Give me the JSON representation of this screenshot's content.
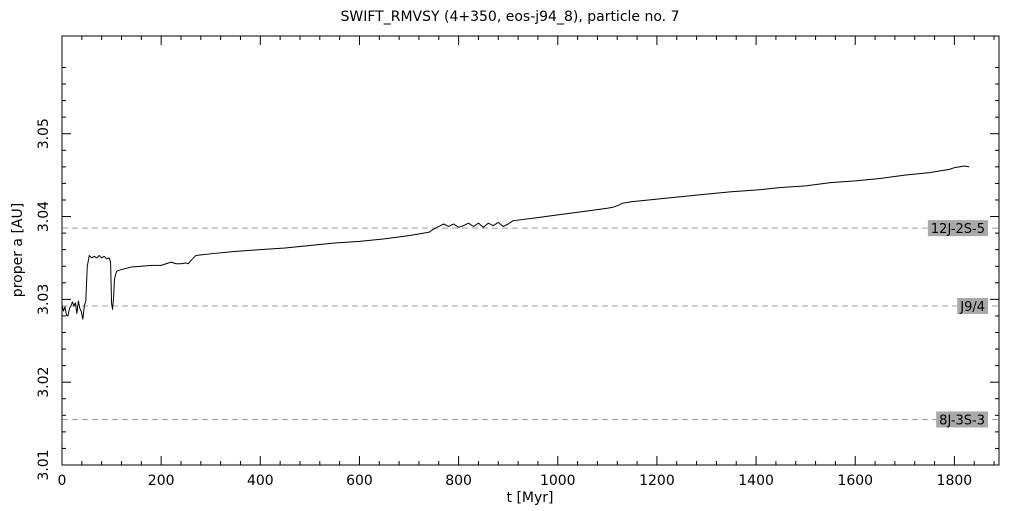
{
  "chart_data": {
    "type": "line",
    "title": "SWIFT_RMVSY (4+350, eos-j94_8), particle no. 7",
    "xlabel": "t [Myr]",
    "ylabel": "proper a [AU]",
    "xlim": [
      0,
      1890
    ],
    "ylim": [
      3.01,
      3.0618
    ],
    "x_ticks": [
      0,
      200,
      400,
      600,
      800,
      1000,
      1200,
      1400,
      1600,
      1800
    ],
    "x_tick_labels": [
      "0",
      "200",
      "400",
      "600",
      "800",
      "1000",
      "1200",
      "1400",
      "1600",
      "1800"
    ],
    "y_ticks": [
      3.01,
      3.02,
      3.03,
      3.04,
      3.05
    ],
    "y_tick_labels": [
      "3.01",
      "3.02",
      "3.03",
      "3.04",
      "3.05"
    ],
    "grid": false,
    "resonances": [
      {
        "label": "12J-2S-5",
        "a": 3.0386
      },
      {
        "label": "J9/4",
        "a": 3.0292
      },
      {
        "label": "8J-3S-3",
        "a": 3.0155
      }
    ],
    "series": [
      {
        "x": [
          0,
          3,
          6,
          9,
          12,
          15,
          18,
          21,
          24,
          27,
          30,
          33,
          36,
          39,
          42,
          45,
          48,
          51,
          55,
          60,
          65,
          70,
          75,
          80,
          85,
          90,
          95,
          98,
          100,
          102,
          104,
          106,
          110,
          120,
          140,
          160,
          180,
          200,
          210,
          220,
          230,
          240,
          250,
          255,
          260,
          265,
          270,
          300,
          350,
          400,
          450,
          500,
          550,
          600,
          650,
          700,
          740,
          750,
          760,
          770,
          780,
          790,
          800,
          810,
          820,
          830,
          840,
          850,
          860,
          870,
          880,
          890,
          900,
          910,
          950,
          1000,
          1050,
          1100,
          1110,
          1120,
          1130,
          1140,
          1150,
          1200,
          1250,
          1300,
          1350,
          1400,
          1450,
          1500,
          1550,
          1600,
          1650,
          1700,
          1750,
          1790,
          1800,
          1810,
          1820,
          1830
        ],
        "y": [
          3.0293,
          3.0286,
          3.0291,
          3.0281,
          3.028,
          3.0289,
          3.0292,
          3.0297,
          3.0292,
          3.0296,
          3.0283,
          3.0298,
          3.0289,
          3.0285,
          3.0276,
          3.0292,
          3.0298,
          3.034,
          3.0353,
          3.035,
          3.0352,
          3.035,
          3.0353,
          3.035,
          3.0352,
          3.0349,
          3.035,
          3.0345,
          3.0295,
          3.0288,
          3.0302,
          3.0325,
          3.0334,
          3.0336,
          3.0339,
          3.034,
          3.0341,
          3.0341,
          3.0343,
          3.0345,
          3.0343,
          3.0343,
          3.0344,
          3.0343,
          3.0347,
          3.035,
          3.0353,
          3.0355,
          3.0358,
          3.036,
          3.0362,
          3.0365,
          3.0368,
          3.037,
          3.0373,
          3.0377,
          3.0381,
          3.0385,
          3.0388,
          3.0391,
          3.0388,
          3.0391,
          3.0387,
          3.0389,
          3.0392,
          3.0388,
          3.0392,
          3.0387,
          3.0392,
          3.0389,
          3.0393,
          3.0388,
          3.0391,
          3.0395,
          3.0398,
          3.0402,
          3.0406,
          3.041,
          3.0411,
          3.0413,
          3.0416,
          3.0417,
          3.0418,
          3.0421,
          3.0424,
          3.0427,
          3.043,
          3.0432,
          3.0435,
          3.0437,
          3.0441,
          3.0443,
          3.0446,
          3.045,
          3.0453,
          3.0457,
          3.0459,
          3.046,
          3.0461,
          3.046
        ]
      }
    ]
  }
}
